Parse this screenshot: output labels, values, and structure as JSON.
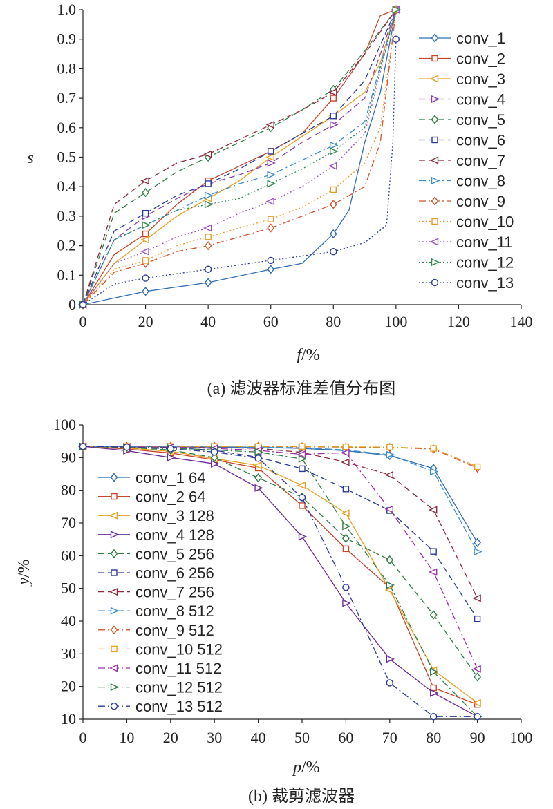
{
  "chart_data": [
    {
      "type": "line",
      "caption": "(a) 滤波器标准差值分布图",
      "xlabel": "f",
      "xunit": "/%",
      "ylabel": "s",
      "xlim": [
        0,
        140
      ],
      "ylim": [
        0,
        1.0
      ],
      "xticks": [
        "0",
        "20",
        "40",
        "60",
        "80",
        "100",
        "120",
        "140"
      ],
      "yticks": [
        "0",
        "0.1",
        "0.2",
        "0.3",
        "0.4",
        "0.5",
        "0.6",
        "0.7",
        "0.8",
        "0.9",
        "1.0"
      ],
      "legend_position": "right",
      "series": [
        {
          "name": "conv_1",
          "color": "#2e6db4",
          "dash": "",
          "marker": "diamond",
          "x": [
            0,
            20,
            40,
            60,
            70,
            80,
            85,
            90,
            95,
            100
          ],
          "y": [
            0,
            0.045,
            0.075,
            0.12,
            0.14,
            0.24,
            0.32,
            0.55,
            0.72,
            1.0
          ]
        },
        {
          "name": "conv_2",
          "color": "#c9442a",
          "dash": "",
          "marker": "square",
          "x": [
            0,
            10,
            20,
            30,
            40,
            50,
            60,
            70,
            80,
            90,
            95,
            100
          ],
          "y": [
            0,
            0.17,
            0.24,
            0.34,
            0.42,
            0.47,
            0.52,
            0.58,
            0.7,
            0.85,
            0.98,
            1.0
          ]
        },
        {
          "name": "conv_3",
          "color": "#e8a020",
          "dash": "",
          "marker": "triangle-left",
          "x": [
            0,
            10,
            20,
            30,
            40,
            50,
            60,
            70,
            80,
            90,
            95,
            100
          ],
          "y": [
            0,
            0.14,
            0.22,
            0.3,
            0.36,
            0.42,
            0.5,
            0.57,
            0.64,
            0.72,
            0.82,
            1.0
          ]
        },
        {
          "name": "conv_4",
          "color": "#8a3fb0",
          "dash": "9 5",
          "marker": "triangle-right",
          "x": [
            0,
            10,
            20,
            30,
            40,
            50,
            60,
            70,
            80,
            90,
            100
          ],
          "y": [
            0,
            0.22,
            0.3,
            0.36,
            0.41,
            0.44,
            0.48,
            0.55,
            0.61,
            0.7,
            1.0
          ]
        },
        {
          "name": "conv_5",
          "color": "#2f7d44",
          "dash": "9 5",
          "marker": "diamond",
          "x": [
            0,
            10,
            20,
            30,
            40,
            50,
            60,
            70,
            80,
            90,
            100
          ],
          "y": [
            0,
            0.31,
            0.38,
            0.45,
            0.5,
            0.55,
            0.6,
            0.66,
            0.73,
            0.86,
            1.0
          ]
        },
        {
          "name": "conv_6",
          "color": "#2a3a9a",
          "dash": "9 5",
          "marker": "square",
          "x": [
            0,
            10,
            20,
            30,
            40,
            50,
            60,
            70,
            80,
            90,
            100
          ],
          "y": [
            0,
            0.25,
            0.31,
            0.37,
            0.41,
            0.46,
            0.52,
            0.58,
            0.64,
            0.76,
            1.0
          ]
        },
        {
          "name": "conv_7",
          "color": "#8c2a3c",
          "dash": "9 5",
          "marker": "triangle-left",
          "x": [
            0,
            10,
            20,
            30,
            40,
            50,
            60,
            70,
            80,
            90,
            100
          ],
          "y": [
            0,
            0.34,
            0.42,
            0.48,
            0.51,
            0.56,
            0.61,
            0.66,
            0.72,
            0.85,
            1.0
          ]
        },
        {
          "name": "conv_8",
          "color": "#3b8ed0",
          "dash": "10 4 2 4",
          "marker": "triangle-right",
          "x": [
            0,
            10,
            20,
            30,
            40,
            50,
            60,
            70,
            80,
            90,
            100
          ],
          "y": [
            0,
            0.22,
            0.27,
            0.32,
            0.37,
            0.41,
            0.44,
            0.49,
            0.54,
            0.62,
            1.0
          ]
        },
        {
          "name": "conv_9",
          "color": "#d8502a",
          "dash": "10 4 2 4",
          "marker": "diamond",
          "x": [
            0,
            10,
            20,
            30,
            40,
            50,
            60,
            70,
            80,
            90,
            95,
            100
          ],
          "y": [
            0,
            0.11,
            0.14,
            0.18,
            0.2,
            0.23,
            0.26,
            0.3,
            0.34,
            0.4,
            0.55,
            1.0
          ]
        },
        {
          "name": "conv_10",
          "color": "#e89a2a",
          "dash": "2 3",
          "marker": "square",
          "x": [
            0,
            10,
            20,
            30,
            40,
            50,
            60,
            70,
            80,
            90,
            95,
            100
          ],
          "y": [
            0,
            0.12,
            0.15,
            0.2,
            0.23,
            0.26,
            0.29,
            0.33,
            0.39,
            0.48,
            0.6,
            1.0
          ]
        },
        {
          "name": "conv_11",
          "color": "#9b4fc4",
          "dash": "2 3",
          "marker": "triangle-left",
          "x": [
            0,
            10,
            20,
            30,
            40,
            50,
            60,
            70,
            80,
            90,
            100
          ],
          "y": [
            0,
            0.14,
            0.18,
            0.23,
            0.26,
            0.31,
            0.35,
            0.4,
            0.47,
            0.58,
            1.0
          ]
        },
        {
          "name": "conv_12",
          "color": "#2f8a4c",
          "dash": "2 3",
          "marker": "triangle-right",
          "x": [
            0,
            10,
            20,
            30,
            40,
            50,
            60,
            70,
            80,
            90,
            100
          ],
          "y": [
            0,
            0.22,
            0.27,
            0.32,
            0.34,
            0.36,
            0.41,
            0.46,
            0.52,
            0.6,
            1.0
          ]
        },
        {
          "name": "conv_13",
          "color": "#2a3a9a",
          "dash": "2 3",
          "marker": "circle",
          "x": [
            0,
            10,
            20,
            40,
            60,
            80,
            90,
            97,
            99,
            100
          ],
          "y": [
            0,
            0.07,
            0.09,
            0.12,
            0.15,
            0.18,
            0.21,
            0.27,
            0.55,
            0.9
          ]
        }
      ]
    },
    {
      "type": "line",
      "caption": "(b) 裁剪滤波器",
      "xlabel": "p",
      "xunit": "/%",
      "ylabel": "y",
      "yunit": "/%",
      "xlim": [
        0,
        100
      ],
      "ylim": [
        10,
        100
      ],
      "xticks": [
        "0",
        "10",
        "20",
        "30",
        "40",
        "50",
        "60",
        "70",
        "80",
        "90",
        "100"
      ],
      "yticks": [
        "10",
        "20",
        "30",
        "40",
        "50",
        "60",
        "70",
        "80",
        "90",
        "100"
      ],
      "legend_position": "left",
      "x": [
        0,
        10,
        20,
        30,
        40,
        50,
        60,
        70,
        80,
        90
      ],
      "series": [
        {
          "name": "conv_1 64",
          "color": "#2e6db4",
          "dash": "",
          "marker": "diamond",
          "y": [
            93.4,
            93.4,
            93.3,
            93.2,
            93.1,
            92.8,
            92.1,
            90.6,
            86.7,
            64.0
          ]
        },
        {
          "name": "conv_2 64",
          "color": "#c9442a",
          "dash": "",
          "marker": "square",
          "y": [
            93.4,
            92.6,
            91.4,
            89.3,
            86.8,
            75.3,
            62.1,
            50.2,
            19.6,
            14.5
          ]
        },
        {
          "name": "conv_3 128",
          "color": "#e8a020",
          "dash": "",
          "marker": "triangle-left",
          "y": [
            93.4,
            92.9,
            91.9,
            89.7,
            87.6,
            81.5,
            73.0,
            49.5,
            25.0,
            15.0
          ]
        },
        {
          "name": "conv_4 128",
          "color": "#6b2a9a",
          "dash": "",
          "marker": "triangle-right",
          "y": [
            93.4,
            92.1,
            90.0,
            88.1,
            80.7,
            65.8,
            45.5,
            28.4,
            18.0,
            10.8
          ]
        },
        {
          "name": "conv_5 256",
          "color": "#2f7d44",
          "dash": "9 5",
          "marker": "diamond",
          "y": [
            93.4,
            93.1,
            92.3,
            90.0,
            83.8,
            77.9,
            65.3,
            58.7,
            41.9,
            22.9
          ]
        },
        {
          "name": "conv_6 256",
          "color": "#2a3a9a",
          "dash": "9 5",
          "marker": "square",
          "y": [
            93.4,
            93.3,
            93.1,
            92.2,
            90.1,
            86.6,
            80.4,
            73.8,
            61.3,
            40.7
          ]
        },
        {
          "name": "conv_7 256",
          "color": "#8c2a3c",
          "dash": "9 5",
          "marker": "triangle-left",
          "y": [
            93.4,
            93.3,
            93.3,
            93.1,
            92.8,
            91.6,
            88.6,
            84.7,
            74.0,
            47.0
          ]
        },
        {
          "name": "conv_8 512",
          "color": "#3b8ed0",
          "dash": "10 4",
          "marker": "triangle-right",
          "y": [
            93.4,
            93.4,
            93.4,
            93.3,
            93.2,
            93.0,
            92.3,
            90.9,
            85.7,
            61.2
          ]
        },
        {
          "name": "conv_9 512",
          "color": "#d8502a",
          "dash": "10 4 2 4",
          "marker": "diamond",
          "y": [
            93.4,
            93.4,
            93.4,
            93.4,
            93.4,
            93.3,
            93.2,
            93.1,
            92.6,
            86.8
          ]
        },
        {
          "name": "conv_10 512",
          "color": "#e8a020",
          "dash": "10 4 2 4",
          "marker": "square",
          "y": [
            93.4,
            93.4,
            93.4,
            93.4,
            93.4,
            93.4,
            93.3,
            93.2,
            92.8,
            87.2
          ]
        },
        {
          "name": "conv_11 512",
          "color": "#9b2fa8",
          "dash": "10 4 2 4",
          "marker": "triangle-left",
          "y": [
            93.4,
            93.3,
            93.2,
            92.8,
            92.2,
            91.0,
            91.5,
            74.2,
            55.0,
            25.4
          ]
        },
        {
          "name": "conv_12 512",
          "color": "#2f7d44",
          "dash": "10 4 2 4",
          "marker": "triangle-right",
          "y": [
            93.4,
            93.2,
            92.9,
            92.3,
            91.7,
            89.6,
            69.0,
            51.0,
            24.5,
            10.8
          ]
        },
        {
          "name": "conv_13 512",
          "color": "#2a3a9a",
          "dash": "10 4 2 4",
          "marker": "circle",
          "y": [
            93.4,
            93.2,
            92.7,
            91.7,
            89.8,
            77.8,
            50.3,
            21.1,
            10.8,
            10.8
          ]
        }
      ]
    }
  ]
}
